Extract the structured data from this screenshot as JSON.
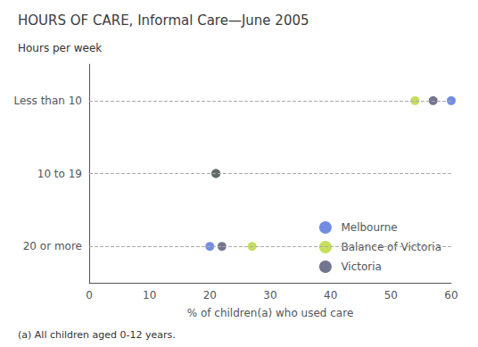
{
  "chart_data": {
    "type": "scatter",
    "orientation": "horizontal",
    "title": "HOURS OF CARE, Informal Care—June 2005",
    "ylabel": "Hours per week",
    "xlabel": "% of children(a) who used care",
    "annotations": [
      "(a) All children aged 0-12 years."
    ],
    "categories": [
      "Less than 10",
      "10 to 19",
      "20 or more"
    ],
    "series": [
      {
        "name": "Melbourne",
        "marker": "circle",
        "values": [
          60,
          21,
          20
        ]
      },
      {
        "name": "Balance of Victoria",
        "marker": "circle",
        "values": [
          54,
          21,
          27
        ]
      },
      {
        "name": "Victoria",
        "marker": "circle",
        "values": [
          57,
          21,
          22
        ]
      }
    ],
    "xlim": [
      0,
      60
    ],
    "xticks": [
      0,
      10,
      20,
      30,
      40,
      50,
      60
    ],
    "grid": true,
    "legend": "lower right"
  }
}
